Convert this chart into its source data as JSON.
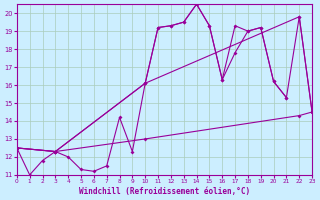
{
  "xlabel": "Windchill (Refroidissement éolien,°C)",
  "bg_color": "#cceeff",
  "grid_color": "#aaccbb",
  "line_color": "#990099",
  "xlim": [
    0,
    23
  ],
  "ylim": [
    11,
    20.5
  ],
  "xticks": [
    0,
    1,
    2,
    3,
    4,
    5,
    6,
    7,
    8,
    9,
    10,
    11,
    12,
    13,
    14,
    15,
    16,
    17,
    18,
    19,
    20,
    21,
    22,
    23
  ],
  "yticks": [
    11,
    12,
    13,
    14,
    15,
    16,
    17,
    18,
    19,
    20
  ],
  "line1_x": [
    0,
    1,
    2,
    3,
    4,
    5,
    6,
    7,
    8,
    9,
    10,
    11,
    12,
    13,
    14,
    15,
    16,
    17,
    18,
    19,
    20,
    21
  ],
  "line1_y": [
    12.5,
    11.0,
    11.8,
    12.3,
    12.0,
    11.3,
    11.2,
    11.5,
    14.2,
    12.3,
    16.1,
    19.2,
    19.3,
    19.5,
    20.5,
    19.3,
    16.3,
    19.3,
    19.0,
    19.2,
    16.2,
    15.3
  ],
  "line2_x": [
    0,
    3,
    10,
    11,
    12,
    13,
    14,
    15,
    16,
    17,
    18,
    19,
    20,
    21,
    22,
    23
  ],
  "line2_y": [
    12.5,
    12.3,
    16.1,
    19.2,
    19.3,
    19.5,
    20.5,
    19.3,
    16.3,
    17.8,
    19.0,
    19.2,
    16.2,
    15.3,
    19.8,
    14.5
  ],
  "line3_x": [
    0,
    3,
    10,
    22,
    23
  ],
  "line3_y": [
    12.5,
    12.3,
    16.1,
    19.8,
    14.5
  ],
  "line4_x": [
    0,
    3,
    10,
    22,
    23
  ],
  "line4_y": [
    12.5,
    12.3,
    13.0,
    14.3,
    14.5
  ]
}
